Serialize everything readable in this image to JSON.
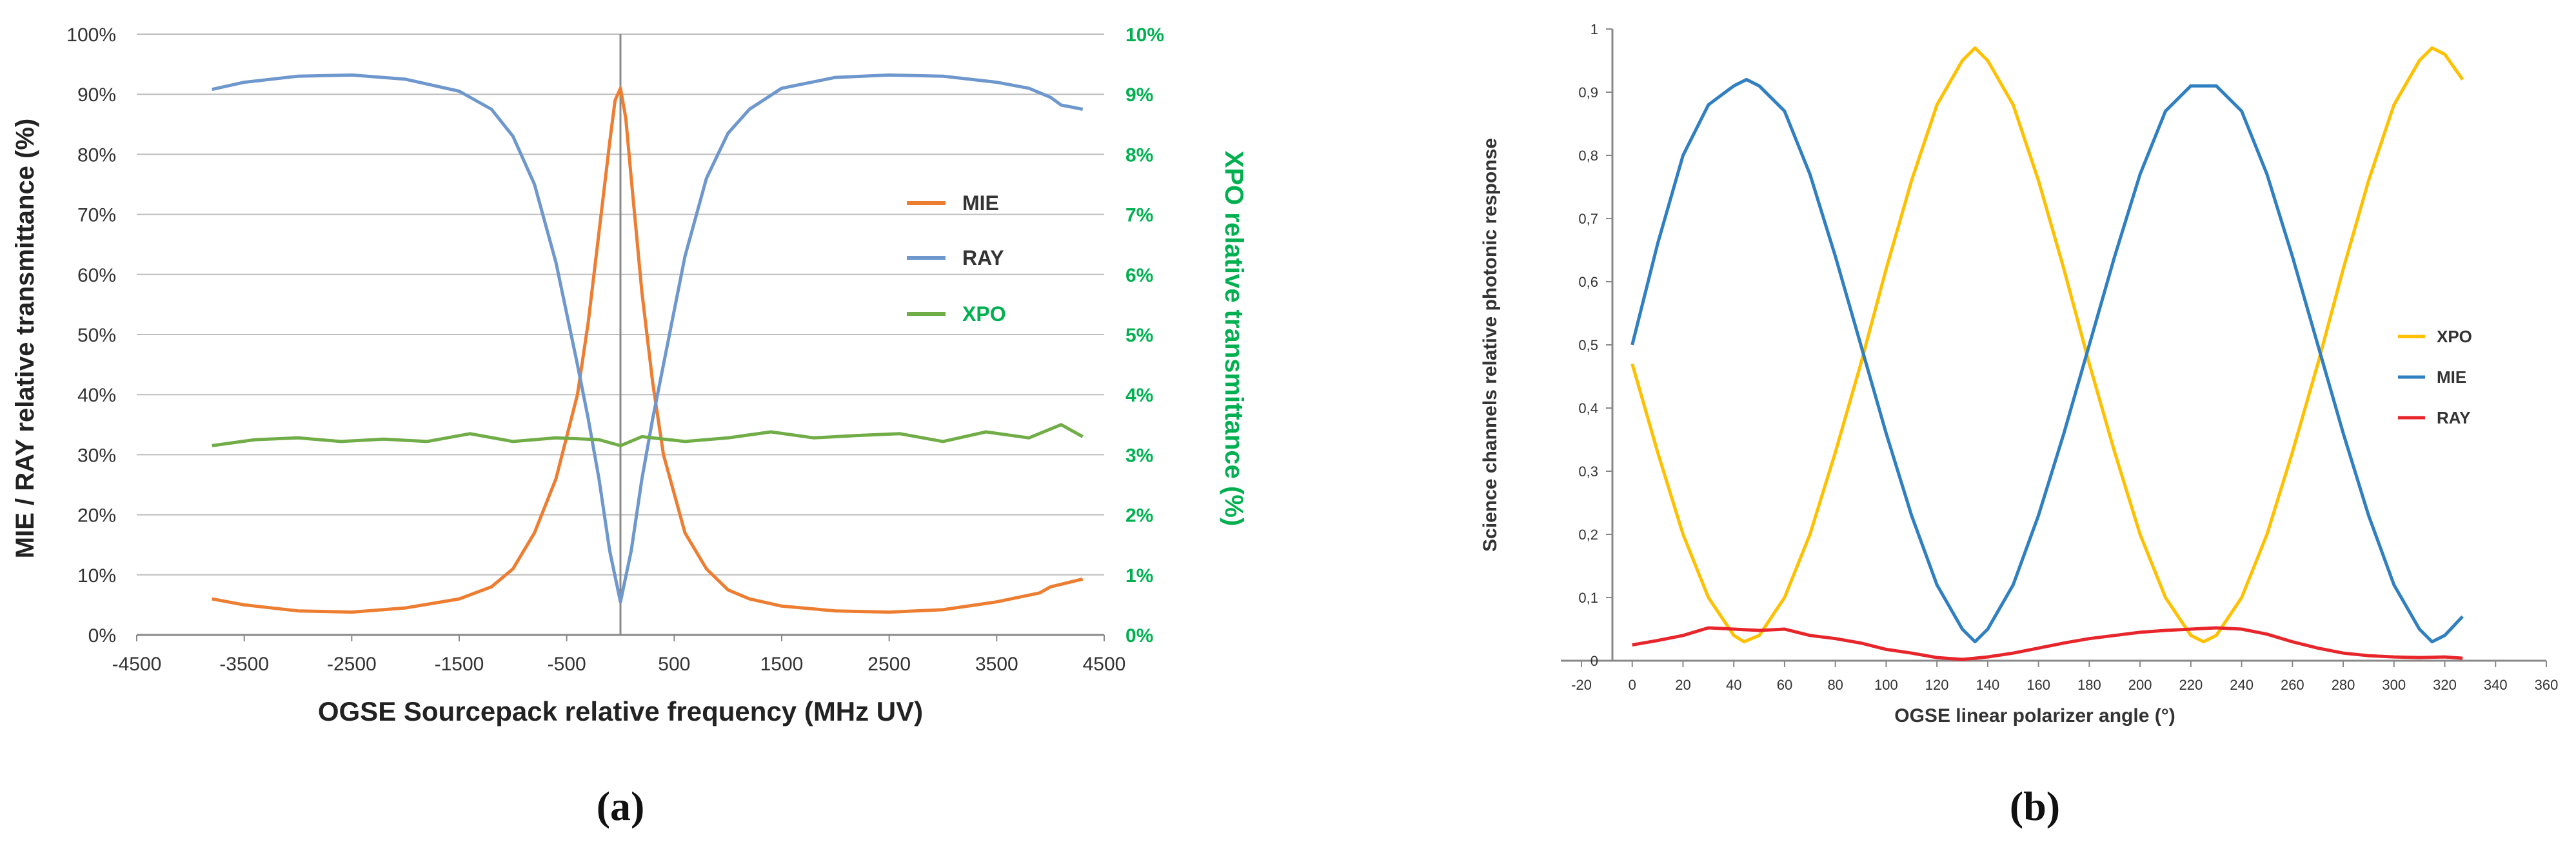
{
  "chart_data": [
    {
      "panel_label": "(a)",
      "type": "line",
      "xlabel": "OGSE Sourcepack relative frequency  (MHz UV)",
      "ylabel": "MIE / RAY relative transmittance (%)",
      "y2label": "XPO relative transmittance (%)",
      "xlim": [
        -4500,
        4500
      ],
      "ylim": [
        0,
        100
      ],
      "y2lim": [
        0,
        10
      ],
      "xticks": [
        "-4500",
        "-3500",
        "-2500",
        "-1500",
        "-500",
        "500",
        "1500",
        "2500",
        "3500",
        "4500"
      ],
      "yticks": [
        "0%",
        "10%",
        "20%",
        "30%",
        "40%",
        "50%",
        "60%",
        "70%",
        "80%",
        "90%",
        "100%"
      ],
      "y2ticks": [
        "0%",
        "1%",
        "2%",
        "3%",
        "4%",
        "5%",
        "6%",
        "7%",
        "8%",
        "9%",
        "10%"
      ],
      "vline_x": 0,
      "grid": "horizontal",
      "legend_position": "center-right",
      "series": [
        {
          "name": "MIE",
          "axis": "left",
          "color": "#ED7D31",
          "x": [
            -3800,
            -3500,
            -3000,
            -2500,
            -2000,
            -1500,
            -1200,
            -1000,
            -800,
            -600,
            -400,
            -300,
            -200,
            -100,
            -50,
            0,
            50,
            100,
            200,
            300,
            400,
            600,
            800,
            1000,
            1200,
            1500,
            2000,
            2500,
            3000,
            3500,
            3900,
            4000,
            4300
          ],
          "y": [
            6.0,
            5.0,
            4.0,
            3.8,
            4.5,
            6.0,
            8.0,
            11.0,
            17.0,
            26.0,
            40.0,
            52.0,
            67.0,
            82.0,
            89.0,
            91.0,
            86.0,
            76.0,
            57.0,
            42.0,
            30.0,
            17.0,
            11.0,
            7.5,
            6.0,
            4.8,
            4.0,
            3.8,
            4.2,
            5.5,
            7.0,
            8.0,
            9.3
          ]
        },
        {
          "name": "RAY",
          "axis": "left",
          "color": "#6D97CD",
          "x": [
            -3800,
            -3500,
            -3000,
            -2500,
            -2000,
            -1500,
            -1200,
            -1000,
            -800,
            -600,
            -400,
            -300,
            -200,
            -100,
            0,
            100,
            200,
            300,
            400,
            600,
            800,
            1000,
            1200,
            1500,
            2000,
            2500,
            3000,
            3500,
            3800,
            4000,
            4100,
            4300
          ],
          "y": [
            90.8,
            92.0,
            93.0,
            93.2,
            92.5,
            90.5,
            87.5,
            83.0,
            75.0,
            62.0,
            45.0,
            36.0,
            26.0,
            14.0,
            5.5,
            14.0,
            26.0,
            36.0,
            45.0,
            63.0,
            76.0,
            83.5,
            87.5,
            91.0,
            92.8,
            93.2,
            93.0,
            92.0,
            91.0,
            89.5,
            88.2,
            87.5
          ]
        },
        {
          "name": "XPO",
          "axis": "right",
          "color": "#70AD47",
          "x": [
            -3800,
            -3400,
            -3000,
            -2600,
            -2200,
            -1800,
            -1400,
            -1000,
            -600,
            -200,
            0,
            200,
            600,
            1000,
            1400,
            1800,
            2200,
            2600,
            3000,
            3400,
            3800,
            4100,
            4300
          ],
          "y": [
            3.15,
            3.25,
            3.28,
            3.22,
            3.26,
            3.22,
            3.35,
            3.22,
            3.28,
            3.25,
            3.15,
            3.3,
            3.22,
            3.28,
            3.38,
            3.28,
            3.32,
            3.35,
            3.22,
            3.38,
            3.28,
            3.5,
            3.3
          ]
        }
      ]
    },
    {
      "panel_label": "(b)",
      "type": "line",
      "xlabel": "OGSE linear polarizer angle (°)",
      "ylabel": "Science channels relative photonic response",
      "xlim": [
        -20,
        360
      ],
      "ylim": [
        0,
        1
      ],
      "xticks": [
        "-20",
        "0",
        "20",
        "40",
        "60",
        "80",
        "100",
        "120",
        "140",
        "160",
        "180",
        "200",
        "220",
        "240",
        "260",
        "280",
        "300",
        "320",
        "340",
        "360"
      ],
      "yticks": [
        "0",
        "0,1",
        "0,2",
        "0,3",
        "0,4",
        "0,5",
        "0,6",
        "0,7",
        "0,8",
        "0,9",
        "1"
      ],
      "grid": "none",
      "legend_position": "right",
      "series": [
        {
          "name": "XPO",
          "color": "#FFC000",
          "x": [
            0,
            10,
            20,
            30,
            40,
            44,
            50,
            60,
            70,
            80,
            90,
            100,
            110,
            120,
            130,
            135,
            140,
            150,
            160,
            170,
            180,
            190,
            200,
            210,
            220,
            225,
            230,
            240,
            250,
            260,
            270,
            280,
            290,
            300,
            310,
            315,
            320,
            327
          ],
          "y": [
            0.47,
            0.33,
            0.2,
            0.1,
            0.04,
            0.03,
            0.04,
            0.1,
            0.2,
            0.33,
            0.47,
            0.62,
            0.76,
            0.88,
            0.95,
            0.97,
            0.95,
            0.88,
            0.76,
            0.62,
            0.47,
            0.33,
            0.2,
            0.1,
            0.04,
            0.03,
            0.04,
            0.1,
            0.2,
            0.33,
            0.47,
            0.62,
            0.76,
            0.88,
            0.95,
            0.97,
            0.96,
            0.92
          ]
        },
        {
          "name": "MIE",
          "color": "#2F7FC1",
          "x": [
            0,
            10,
            20,
            30,
            40,
            45,
            50,
            60,
            70,
            80,
            90,
            100,
            110,
            120,
            130,
            135,
            140,
            150,
            160,
            170,
            180,
            190,
            200,
            210,
            220,
            225,
            230,
            240,
            250,
            260,
            270,
            280,
            290,
            300,
            310,
            315,
            320,
            327
          ],
          "y": [
            0.5,
            0.66,
            0.8,
            0.88,
            0.91,
            0.92,
            0.91,
            0.87,
            0.77,
            0.64,
            0.5,
            0.36,
            0.23,
            0.12,
            0.05,
            0.03,
            0.05,
            0.12,
            0.23,
            0.36,
            0.5,
            0.64,
            0.77,
            0.87,
            0.91,
            0.91,
            0.91,
            0.87,
            0.77,
            0.64,
            0.5,
            0.36,
            0.23,
            0.12,
            0.05,
            0.03,
            0.04,
            0.07
          ]
        },
        {
          "name": "RAY",
          "color": "#E8252A",
          "x": [
            0,
            10,
            20,
            30,
            40,
            50,
            60,
            70,
            80,
            90,
            100,
            110,
            120,
            130,
            140,
            150,
            160,
            170,
            180,
            190,
            200,
            210,
            220,
            230,
            240,
            250,
            260,
            270,
            280,
            290,
            300,
            310,
            320,
            327
          ],
          "y": [
            0.025,
            0.032,
            0.04,
            0.052,
            0.05,
            0.048,
            0.05,
            0.04,
            0.035,
            0.028,
            0.018,
            0.012,
            0.005,
            0.002,
            0.006,
            0.012,
            0.02,
            0.028,
            0.035,
            0.04,
            0.045,
            0.048,
            0.05,
            0.052,
            0.05,
            0.042,
            0.03,
            0.02,
            0.012,
            0.008,
            0.006,
            0.005,
            0.006,
            0.004
          ]
        }
      ]
    }
  ]
}
